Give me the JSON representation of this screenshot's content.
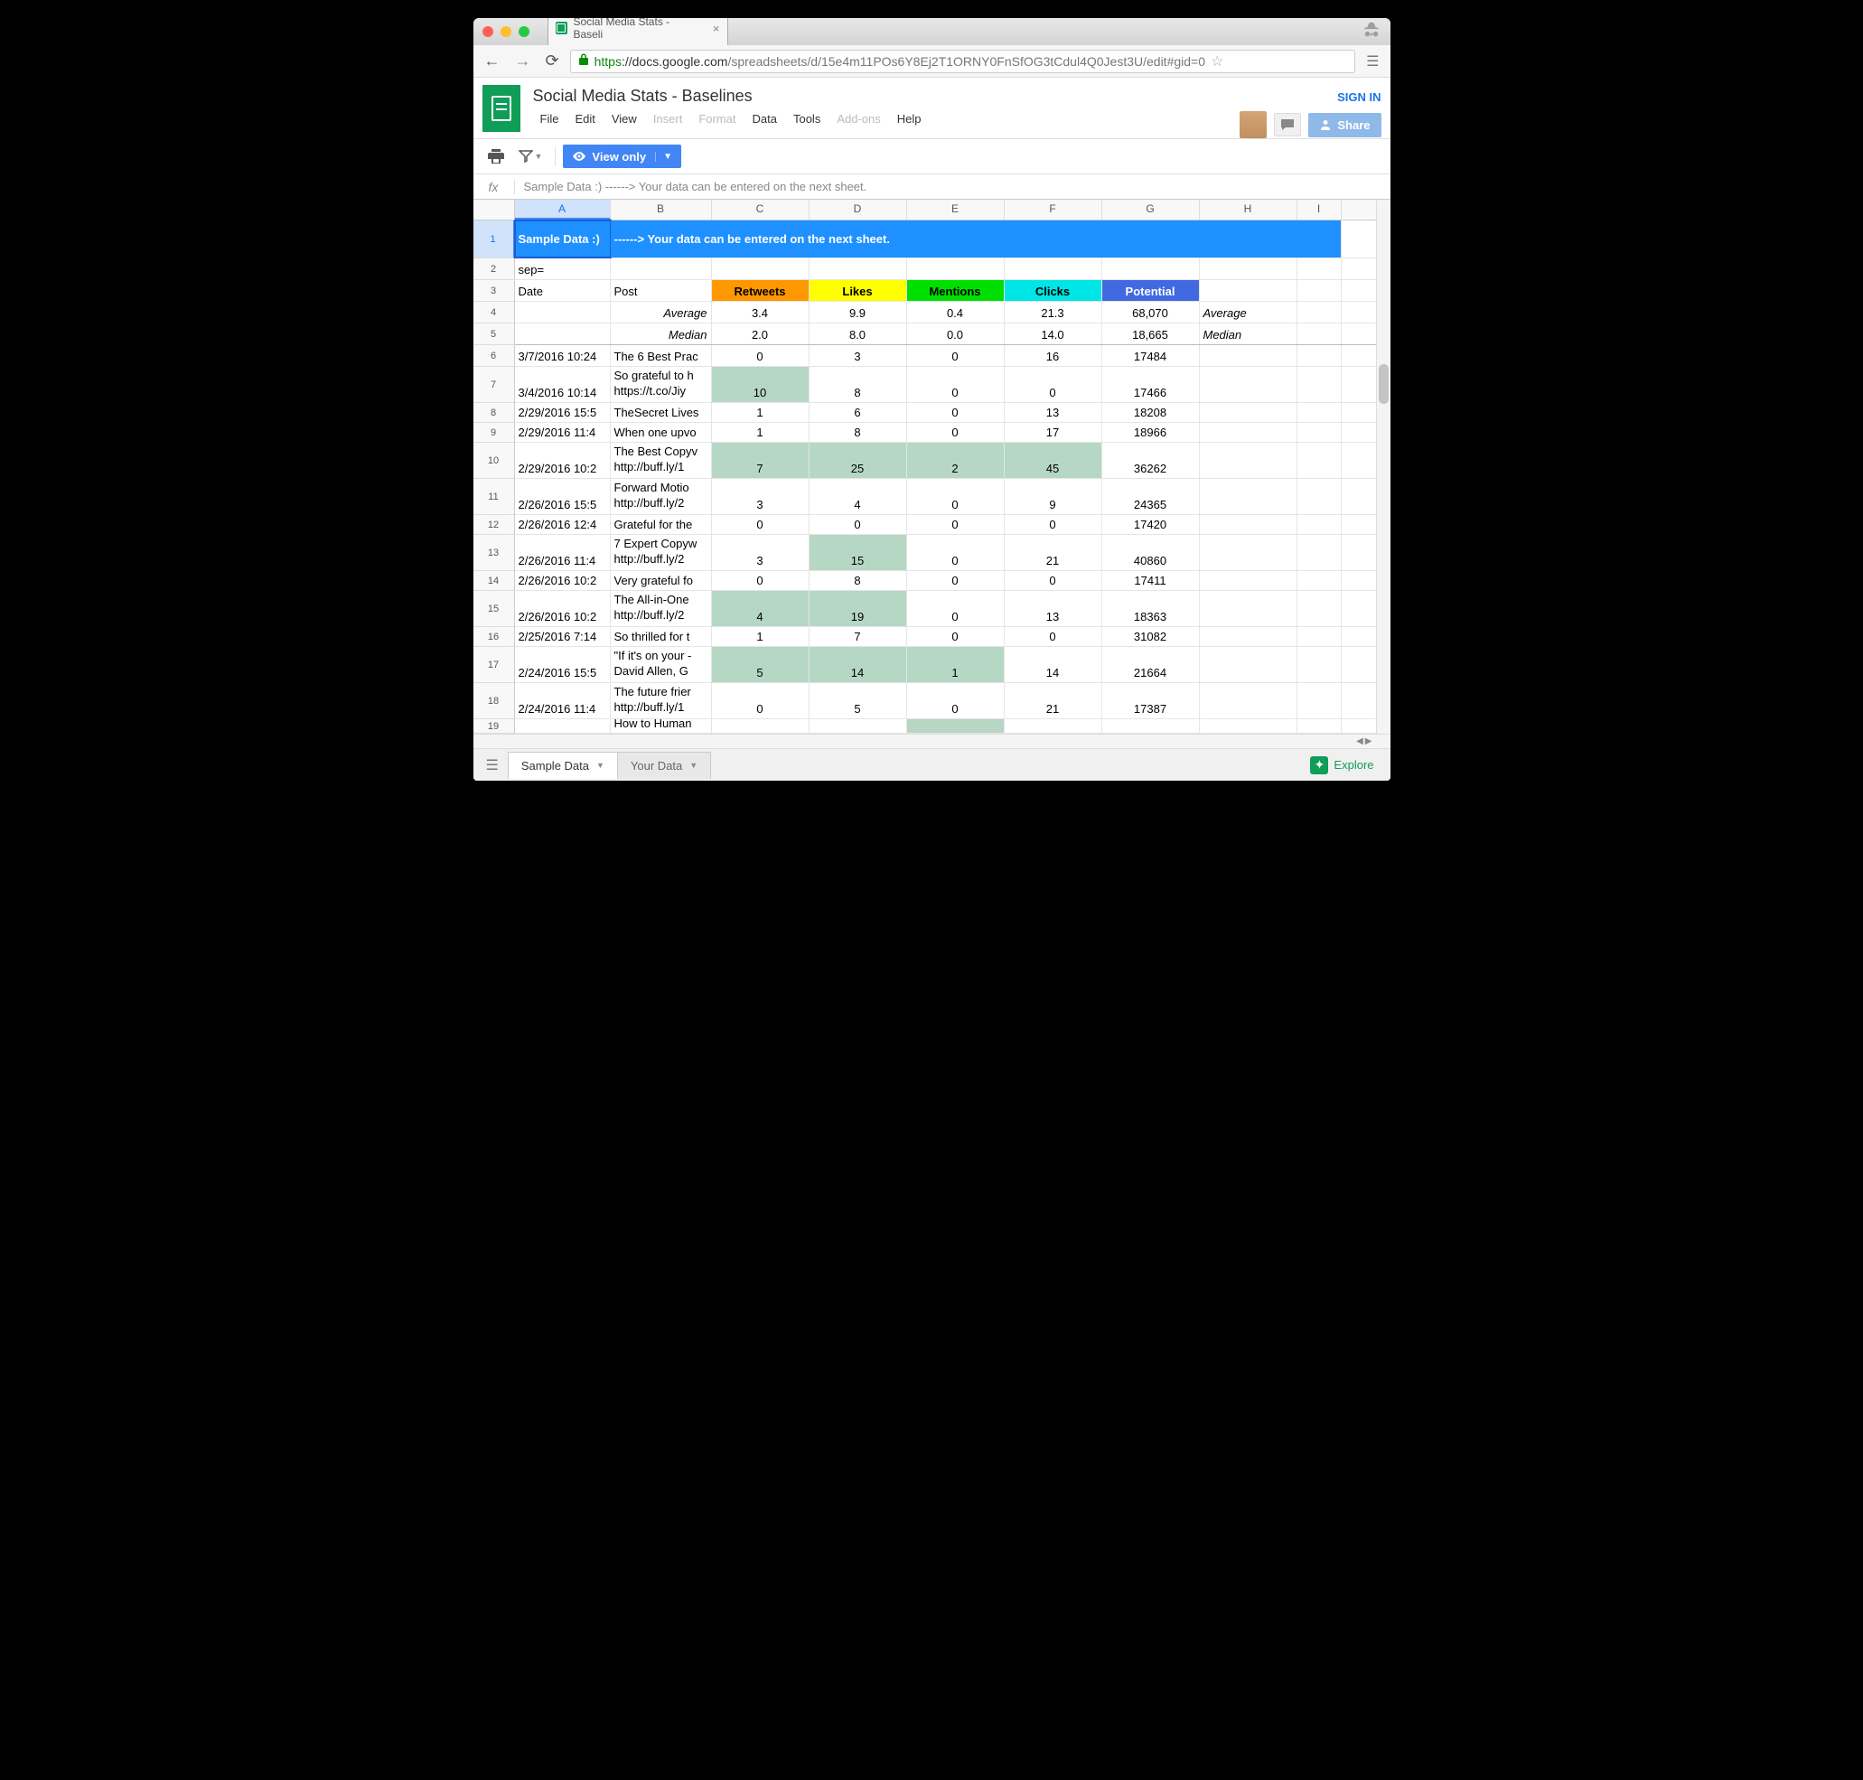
{
  "browser": {
    "tab_title": "Social Media Stats - Baseli",
    "url_scheme": "https",
    "url_host": "://docs.google.com",
    "url_path": "/spreadsheets/d/15e4m11POs6Y8Ej2T1ORNY0FnSfOG3tCdul4Q0Jest3U/edit#gid=0",
    "traffic_colors": {
      "close": "#ff5f57",
      "min": "#ffbd2e",
      "max": "#28c940"
    }
  },
  "sheets": {
    "doc_title": "Social Media Stats - Baselines",
    "menu": {
      "file": "File",
      "edit": "Edit",
      "view": "View",
      "insert": "Insert",
      "format": "Format",
      "data": "Data",
      "tools": "Tools",
      "addons": "Add-ons",
      "help": "Help"
    },
    "signin": "SIGN IN",
    "share": "Share",
    "view_only": "View only",
    "formula_text": "Sample Data :)  ------> Your data can be entered on the next sheet.",
    "explore": "Explore",
    "tabs": {
      "active": "Sample Data",
      "inactive": "Your Data"
    }
  },
  "grid": {
    "columns": [
      {
        "letter": "A",
        "width": 106
      },
      {
        "letter": "B",
        "width": 112
      },
      {
        "letter": "C",
        "width": 108
      },
      {
        "letter": "D",
        "width": 108
      },
      {
        "letter": "E",
        "width": 108
      },
      {
        "letter": "F",
        "width": 108
      },
      {
        "letter": "G",
        "width": 108
      },
      {
        "letter": "H",
        "width": 108
      },
      {
        "letter": "I",
        "width": 49
      }
    ],
    "selected_col": "A",
    "banner": {
      "a": "Sample Data :)",
      "b": "------> Your data can be entered on the next sheet.",
      "bg": "#1e90ff",
      "fg": "#ffffff"
    },
    "row2_a": "sep=",
    "headers": {
      "date": "Date",
      "post": "Post",
      "retweets": {
        "label": "Retweets",
        "bg": "#ff9800",
        "fg": "#000000"
      },
      "likes": {
        "label": "Likes",
        "bg": "#ffff00",
        "fg": "#000000"
      },
      "mentions": {
        "label": "Mentions",
        "bg": "#00e000",
        "fg": "#000000"
      },
      "clicks": {
        "label": "Clicks",
        "bg": "#00e5e5",
        "fg": "#000000"
      },
      "potential": {
        "label": "Potential",
        "bg": "#4169e1",
        "fg": "#ffffff"
      }
    },
    "avg_row": {
      "label": "Average",
      "retweets": "3.4",
      "likes": "9.9",
      "mentions": "0.4",
      "clicks": "21.3",
      "potential": "68,070",
      "label2": "Average"
    },
    "med_row": {
      "label": "Median",
      "retweets": "2.0",
      "likes": "8.0",
      "mentions": "0.0",
      "clicks": "14.0",
      "potential": "18,665",
      "label2": "Median"
    },
    "highlight_bg": "#b6d7c4",
    "rows": [
      {
        "n": 6,
        "h": 24,
        "date": "3/7/2016 10:24",
        "post": "The 6 Best Prac",
        "rt": "0",
        "lk": "3",
        "mn": "0",
        "ck": "16",
        "pt": "17484",
        "hl": []
      },
      {
        "n": 7,
        "h": 40,
        "date": "3/4/2016 10:14",
        "post": "So grateful to h https://t.co/Jiy",
        "rt": "10",
        "lk": "8",
        "mn": "0",
        "ck": "0",
        "pt": "17466",
        "hl": [
          "rt"
        ]
      },
      {
        "n": 8,
        "h": 22,
        "date": "2/29/2016 15:5",
        "post": "TheSecret Lives",
        "rt": "1",
        "lk": "6",
        "mn": "0",
        "ck": "13",
        "pt": "18208",
        "hl": []
      },
      {
        "n": 9,
        "h": 22,
        "date": "2/29/2016 11:4",
        "post": "When one upvo",
        "rt": "1",
        "lk": "8",
        "mn": "0",
        "ck": "17",
        "pt": "18966",
        "hl": []
      },
      {
        "n": 10,
        "h": 40,
        "date": "2/29/2016 10:2",
        "post": "The Best Copyv http://buff.ly/1",
        "rt": "7",
        "lk": "25",
        "mn": "2",
        "ck": "45",
        "pt": "36262",
        "hl": [
          "rt",
          "lk",
          "mn",
          "ck"
        ]
      },
      {
        "n": 11,
        "h": 40,
        "date": "2/26/2016 15:5",
        "post": "Forward Motio http://buff.ly/2",
        "rt": "3",
        "lk": "4",
        "mn": "0",
        "ck": "9",
        "pt": "24365",
        "hl": []
      },
      {
        "n": 12,
        "h": 22,
        "date": "2/26/2016 12:4",
        "post": "Grateful for the",
        "rt": "0",
        "lk": "0",
        "mn": "0",
        "ck": "0",
        "pt": "17420",
        "hl": []
      },
      {
        "n": 13,
        "h": 40,
        "date": "2/26/2016 11:4",
        "post": "7 Expert Copyw http://buff.ly/2",
        "rt": "3",
        "lk": "15",
        "mn": "0",
        "ck": "21",
        "pt": "40860",
        "hl": [
          "lk"
        ]
      },
      {
        "n": 14,
        "h": 22,
        "date": "2/26/2016 10:2",
        "post": "Very grateful fo",
        "rt": "0",
        "lk": "8",
        "mn": "0",
        "ck": "0",
        "pt": "17411",
        "hl": []
      },
      {
        "n": 15,
        "h": 40,
        "date": "2/26/2016 10:2",
        "post": "The All-in-One  http://buff.ly/2",
        "rt": "4",
        "lk": "19",
        "mn": "0",
        "ck": "13",
        "pt": "18363",
        "hl": [
          "rt",
          "lk"
        ]
      },
      {
        "n": 16,
        "h": 22,
        "date": "2/25/2016 7:14",
        "post": "So thrilled for t",
        "rt": "1",
        "lk": "7",
        "mn": "0",
        "ck": "0",
        "pt": "31082",
        "hl": []
      },
      {
        "n": 17,
        "h": 40,
        "date": "2/24/2016 15:5",
        "post": "\"If it's on your  - David Allen, G",
        "rt": "5",
        "lk": "14",
        "mn": "1",
        "ck": "14",
        "pt": "21664",
        "hl": [
          "rt",
          "lk",
          "mn"
        ]
      },
      {
        "n": 18,
        "h": 40,
        "date": "2/24/2016 11:4",
        "post": "The future frier http://buff.ly/1",
        "rt": "0",
        "lk": "5",
        "mn": "0",
        "ck": "21",
        "pt": "17387",
        "hl": []
      },
      {
        "n": 19,
        "h": 16,
        "date": "",
        "post": "How to Human",
        "rt": "",
        "lk": "",
        "mn": "",
        "ck": "",
        "pt": "",
        "hl": [
          "mn"
        ]
      }
    ]
  }
}
